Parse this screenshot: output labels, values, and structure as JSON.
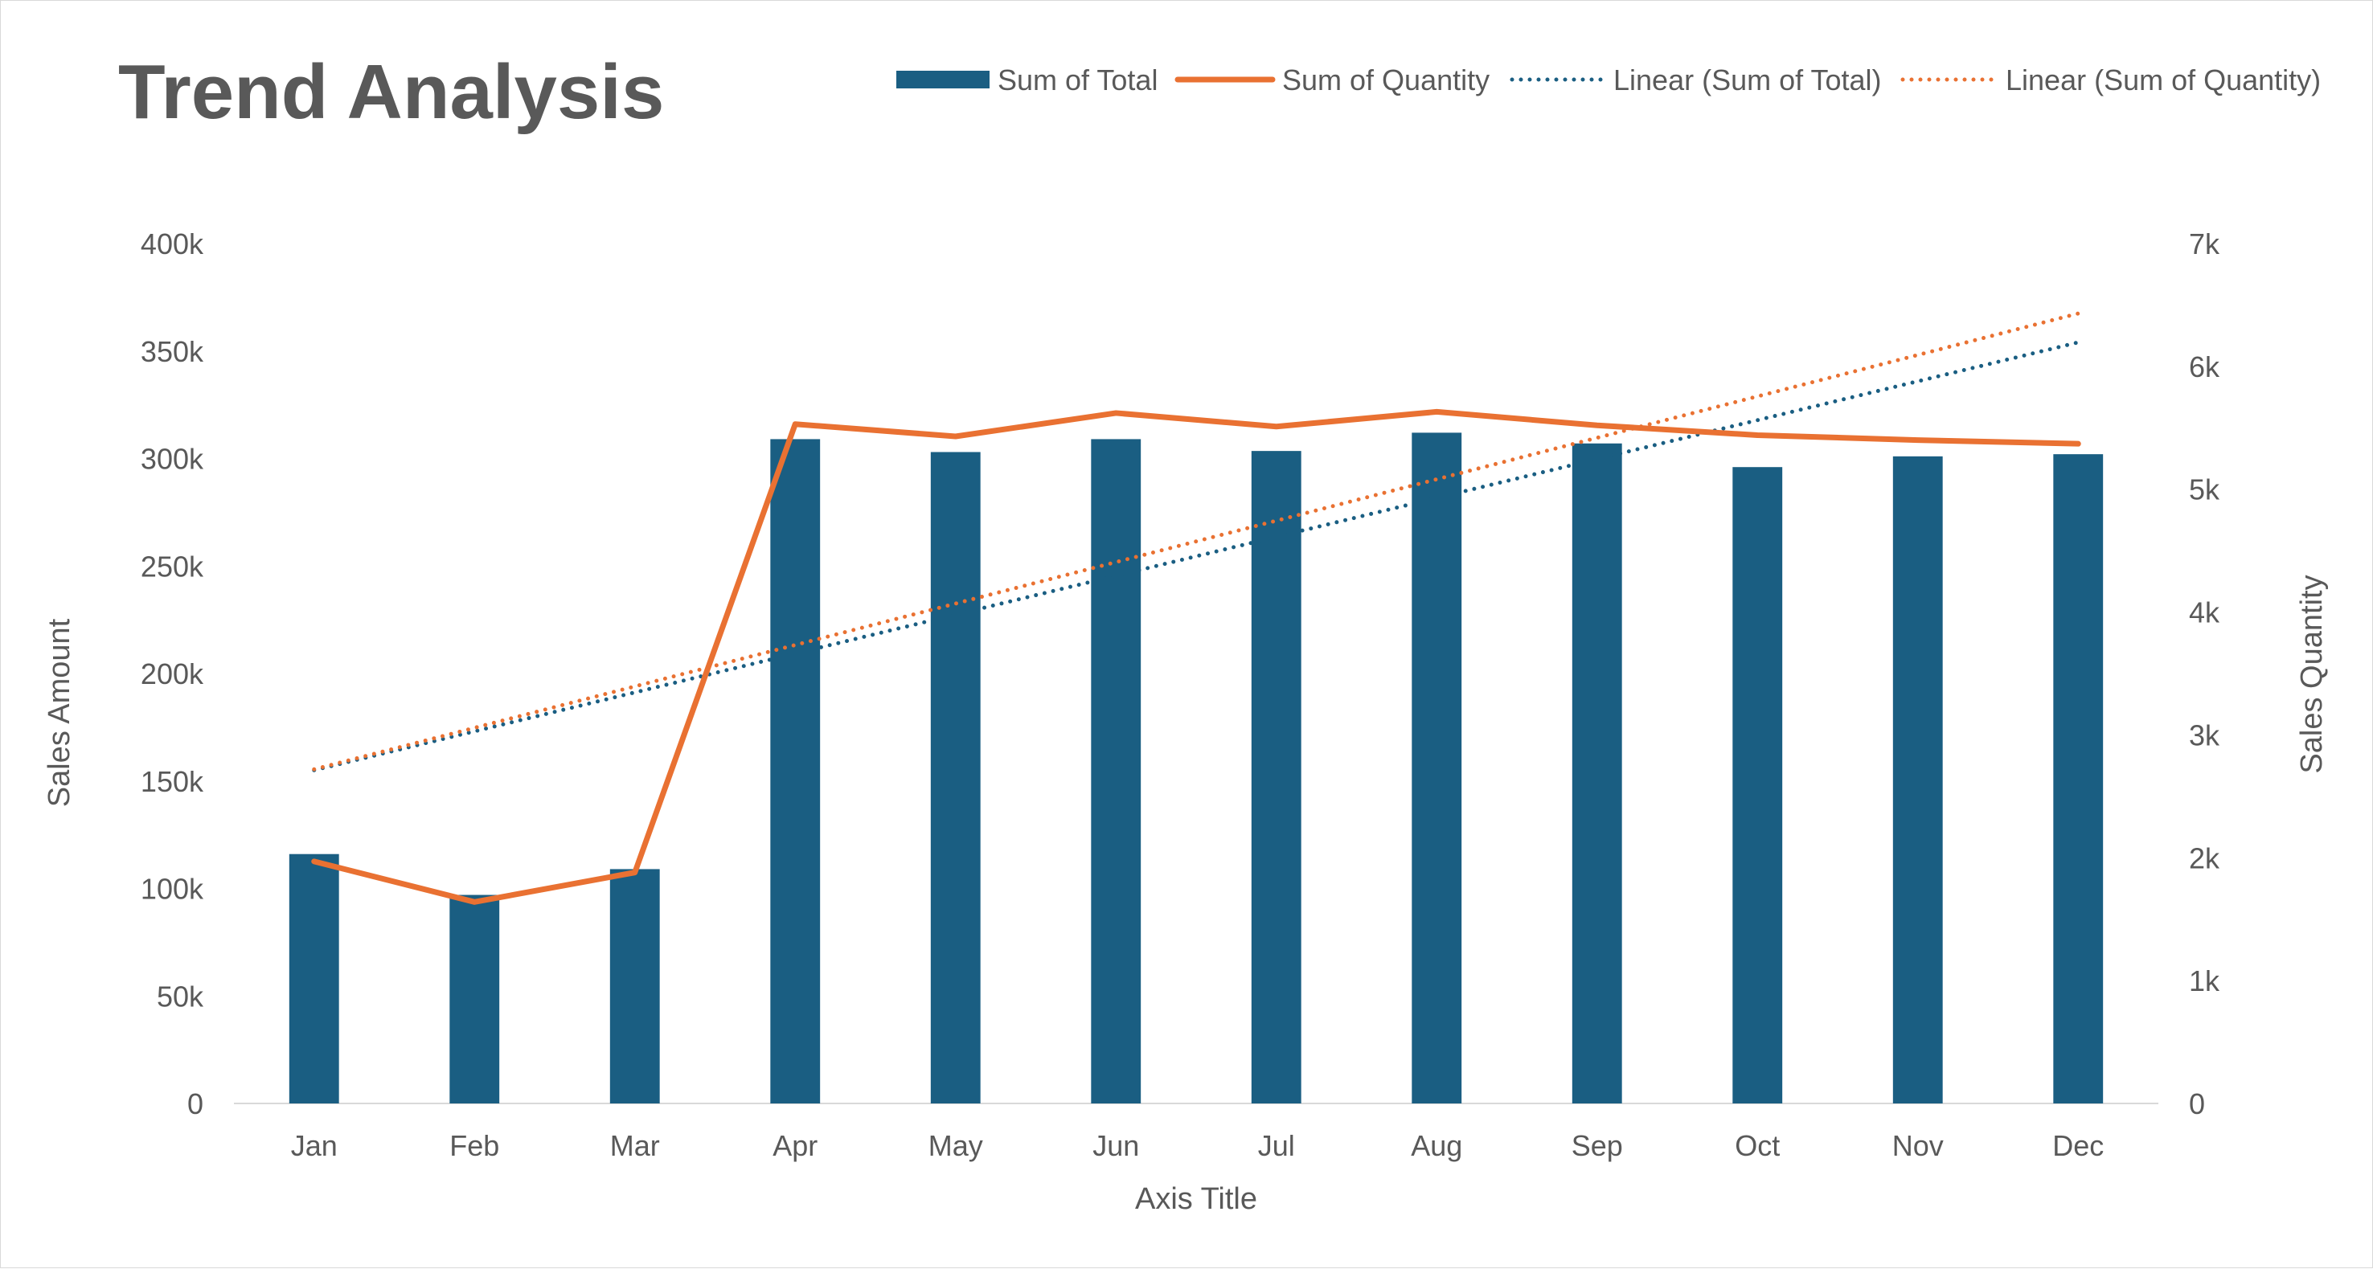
{
  "chart_data": {
    "type": "bar",
    "title": "Trend Analysis",
    "xlabel": "Axis Title",
    "ylabel": "Sales Amount",
    "y2label": "Sales Quantity",
    "categories": [
      "Jan",
      "Feb",
      "Mar",
      "Apr",
      "May",
      "Jun",
      "Jul",
      "Aug",
      "Sep",
      "Oct",
      "Nov",
      "Dec"
    ],
    "ylim": [
      0,
      400000
    ],
    "y2lim": [
      0,
      7000
    ],
    "y_ticks": [
      "0",
      "50k",
      "100k",
      "150k",
      "200k",
      "250k",
      "300k",
      "350k",
      "400k"
    ],
    "y2_ticks": [
      "0",
      "1k",
      "2k",
      "3k",
      "4k",
      "5k",
      "6k",
      "7k"
    ],
    "grid": false,
    "legend_position": "top-right",
    "series": [
      {
        "name": "Sum of Total",
        "type": "bar",
        "axis": "left",
        "color": "#1a5e82",
        "values": [
          116000,
          97000,
          109000,
          309000,
          303000,
          309000,
          303500,
          312000,
          307000,
          296000,
          301000,
          302000
        ]
      },
      {
        "name": "Sum of Quantity",
        "type": "line",
        "axis": "right",
        "color": "#e97132",
        "values": [
          1970,
          1640,
          1880,
          5530,
          5430,
          5620,
          5510,
          5630,
          5520,
          5440,
          5400,
          5370
        ]
      },
      {
        "name": "Linear (Sum of Total)",
        "type": "trendline",
        "of": "Sum of Total",
        "axis": "left",
        "color": "#1a5e82",
        "start": 155000,
        "end": 354000
      },
      {
        "name": "Linear (Sum of Quantity)",
        "type": "trendline",
        "of": "Sum of Quantity",
        "axis": "right",
        "color": "#e97132",
        "start": 2720,
        "end": 6430
      }
    ]
  }
}
